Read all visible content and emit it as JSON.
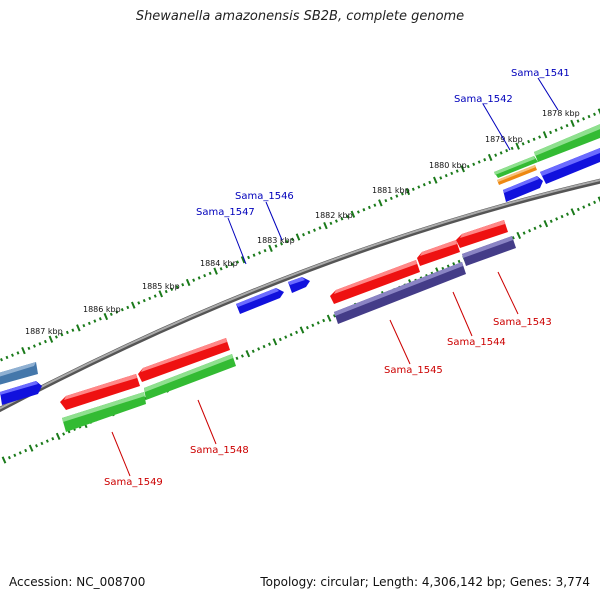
{
  "title": "Shewanella amazonensis SB2B, complete genome",
  "footer": {
    "accession": "Accession: NC_008700",
    "topology": "Topology: circular; Length: 4,306,142 bp; Genes: 3,774"
  },
  "colors": {
    "backbone": "#888888",
    "tick": "#1a7a1a",
    "forward_label": "#0000bb",
    "reverse_label": "#cc0000",
    "red": "#ee1111",
    "blue": "#1111dd",
    "green": "#33bb33",
    "purple": "#443c88",
    "orange": "#ee8811",
    "steelblue": "#4477aa"
  },
  "kbp_labels": [
    "1887 kbp",
    "1886 kbp",
    "1885 kbp",
    "1884 kbp",
    "1883 kbp",
    "1882 kbp",
    "1881 kbp",
    "1880 kbp",
    "1879 kbp",
    "1878 kbp"
  ],
  "gene_labels": {
    "Sama_1541": "Sama_1541",
    "Sama_1542": "Sama_1542",
    "Sama_1546": "Sama_1546",
    "Sama_1547": "Sama_1547",
    "Sama_1543": "Sama_1543",
    "Sama_1544": "Sama_1544",
    "Sama_1545": "Sama_1545",
    "Sama_1548": "Sama_1548",
    "Sama_1549": "Sama_1549"
  }
}
